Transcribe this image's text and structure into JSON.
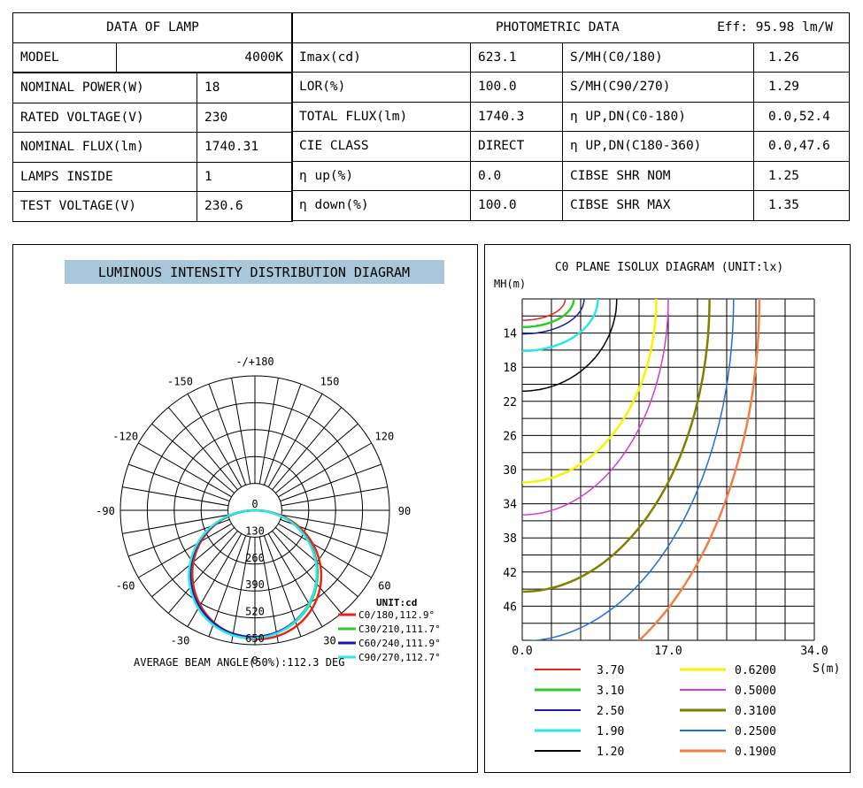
{
  "lamp_table": {
    "header": "DATA OF LAMP",
    "rows": [
      {
        "label": "MODEL",
        "value": "4000K"
      },
      {
        "label": "NOMINAL POWER(W)",
        "value": "18"
      },
      {
        "label": "RATED VOLTAGE(V)",
        "value": "230"
      },
      {
        "label": "NOMINAL FLUX(lm)",
        "value": "1740.31"
      },
      {
        "label": "LAMPS INSIDE",
        "value": "1"
      },
      {
        "label": "TEST VOLTAGE(V)",
        "value": "230.6"
      }
    ]
  },
  "photo_table": {
    "header": "PHOTOMETRIC DATA",
    "eff": "Eff: 95.98 lm/W",
    "rows": [
      {
        "l1": "Imax(cd)",
        "v1": "623.1",
        "l2": "S/MH(C0/180)",
        "v2": "1.26"
      },
      {
        "l1": "LOR(%)",
        "v1": "100.0",
        "l2": "S/MH(C90/270)",
        "v2": "1.29"
      },
      {
        "l1": "TOTAL FLUX(lm)",
        "v1": "1740.3",
        "l2": "η UP,DN(C0-180)",
        "v2": "0.0,52.4"
      },
      {
        "l1": "CIE CLASS",
        "v1": "DIRECT",
        "l2": "η UP,DN(C180-360)",
        "v2": "0.0,47.6"
      },
      {
        "l1": "η up(%)",
        "v1": "0.0",
        "l2": "CIBSE SHR NOM",
        "v2": "1.25"
      },
      {
        "l1": "η down(%)",
        "v1": "100.0",
        "l2": "CIBSE SHR MAX",
        "v2": "1.35"
      }
    ]
  },
  "chart_data": [
    {
      "type": "polar",
      "title": "LUMINOUS INTENSITY DISTRIBUTION DIAGRAM",
      "unit": "UNIT:cd",
      "angle_labels": [
        {
          "a": 180,
          "t": "-/+180"
        },
        {
          "a": 150,
          "t": "150"
        },
        {
          "a": 120,
          "t": "120"
        },
        {
          "a": 90,
          "t": "90"
        },
        {
          "a": 60,
          "t": "60"
        },
        {
          "a": 30,
          "t": "30"
        },
        {
          "a": 0,
          "t": "0"
        },
        {
          "a": -30,
          "t": "-30"
        },
        {
          "a": -60,
          "t": "-60"
        },
        {
          "a": -90,
          "t": "-90"
        },
        {
          "a": -120,
          "t": "-120"
        },
        {
          "a": -150,
          "t": "-150"
        }
      ],
      "r_max": 650,
      "radial_ticks": [
        0,
        130,
        260,
        390,
        520,
        650
      ],
      "series": [
        {
          "name": "C0/180,112.9°",
          "color": "#e8231e",
          "peak": 623.1,
          "skew": 0.04
        },
        {
          "name": "C30/210,111.7°",
          "color": "#2ecc2e",
          "peak": 615,
          "skew": -0.02
        },
        {
          "name": "C60/240,111.9°",
          "color": "#1a1aa6",
          "peak": 612,
          "skew": -0.03
        },
        {
          "name": "C90/270,112.7°",
          "color": "#2ee6e6",
          "peak": 618,
          "skew": -0.045
        }
      ],
      "footer": "AVERAGE BEAM ANGLE(50%):112.3 DEG"
    },
    {
      "type": "isolux",
      "title": "C0 PLANE ISOLUX DIAGRAM (UNIT:lx)",
      "ylabel": "MH(m)",
      "xlabel": "S(m)",
      "y_ticks": [
        "14",
        "18",
        "22",
        "26",
        "30",
        "34",
        "38",
        "42",
        "46"
      ],
      "x_ticks": [
        "0.0",
        "17.0",
        "34.0"
      ],
      "xlim": [
        0,
        34
      ],
      "ylim": [
        10,
        50
      ],
      "contours": [
        {
          "value": "3.70",
          "color": "#e8231e",
          "width": 1.5,
          "rx": 5.0,
          "ry": 2.5
        },
        {
          "value": "3.10",
          "color": "#2ecc2e",
          "width": 2.5,
          "rx": 6.0,
          "ry": 3.3
        },
        {
          "value": "2.50",
          "color": "#1a1aa6",
          "width": 1.5,
          "rx": 7.2,
          "ry": 4.1
        },
        {
          "value": "1.90",
          "color": "#2ee6e6",
          "width": 2.5,
          "rx": 8.8,
          "ry": 6.1
        },
        {
          "value": "1.20",
          "color": "#000000",
          "width": 1.5,
          "rx": 11.0,
          "ry": 10.8
        },
        {
          "value": "0.6200",
          "color": "#f5f500",
          "width": 2.5,
          "rx": 15.6,
          "ry": 21.5
        },
        {
          "value": "0.5000",
          "color": "#d23cd2",
          "width": 1.5,
          "rx": 17.0,
          "ry": 25.3
        },
        {
          "value": "0.3100",
          "color": "#7f7f00",
          "width": 2.5,
          "rx": 21.8,
          "ry": 34.3
        },
        {
          "value": "0.2500",
          "color": "#1e6fd9",
          "width": 1.5,
          "rx": 24.6,
          "ry": 40.1
        },
        {
          "value": "0.1900",
          "color": "#f07f45",
          "width": 2.5,
          "rx": 27.6,
          "ry": 46.0
        }
      ]
    }
  ]
}
